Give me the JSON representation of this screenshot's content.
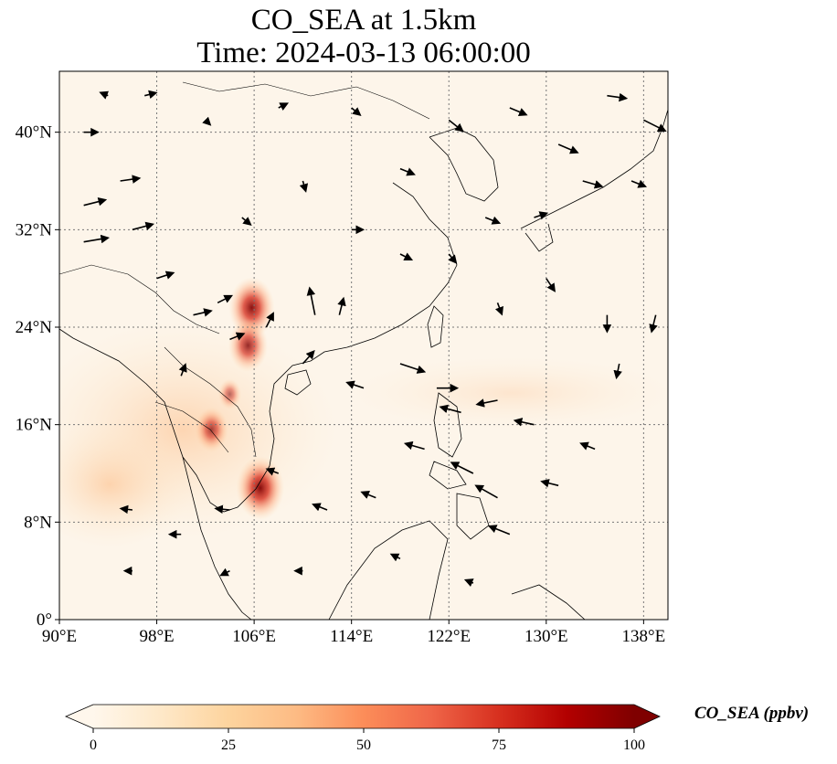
{
  "title": {
    "line1": "CO_SEA at 1.5km",
    "line2": "Time: 2024-03-13 06:00:00"
  },
  "map": {
    "lon_range": [
      90,
      140
    ],
    "lat_range": [
      0,
      45
    ],
    "lon_ticks": [
      {
        "value": 90,
        "label": "90°E"
      },
      {
        "value": 98,
        "label": "98°E"
      },
      {
        "value": 106,
        "label": "106°E"
      },
      {
        "value": 114,
        "label": "114°E"
      },
      {
        "value": 122,
        "label": "122°E"
      },
      {
        "value": 130,
        "label": "130°E"
      },
      {
        "value": 138,
        "label": "138°E"
      }
    ],
    "lat_ticks": [
      {
        "value": 0,
        "label": "0°"
      },
      {
        "value": 8,
        "label": "8°N"
      },
      {
        "value": 16,
        "label": "16°N"
      },
      {
        "value": 24,
        "label": "24°N"
      },
      {
        "value": 32,
        "label": "32°N"
      },
      {
        "value": 40,
        "label": "40°N"
      }
    ],
    "gridlines": true,
    "background_color": "#fdf5ea",
    "coastline_color": "#000000",
    "vector_color": "#000000",
    "hotspots": [
      {
        "lon": 105.8,
        "lat": 25.6,
        "value": 85
      },
      {
        "lon": 105.5,
        "lat": 22.5,
        "value": 70
      },
      {
        "lon": 106.5,
        "lat": 10.8,
        "value": 90
      },
      {
        "lon": 102.5,
        "lat": 15.6,
        "value": 55
      },
      {
        "lon": 104.0,
        "lat": 18.5,
        "value": 30
      }
    ],
    "wind_vectors": [
      {
        "lon": 92,
        "lat": 40,
        "u": 1.0,
        "v": 0.0
      },
      {
        "lon": 92,
        "lat": 34,
        "u": 1.6,
        "v": 0.4
      },
      {
        "lon": 92,
        "lat": 31,
        "u": 1.8,
        "v": 0.3
      },
      {
        "lon": 95,
        "lat": 36,
        "u": 1.4,
        "v": 0.2
      },
      {
        "lon": 96,
        "lat": 32,
        "u": 1.5,
        "v": 0.4
      },
      {
        "lon": 98,
        "lat": 28,
        "u": 1.2,
        "v": 0.4
      },
      {
        "lon": 101,
        "lat": 25,
        "u": 1.3,
        "v": 0.3
      },
      {
        "lon": 100,
        "lat": 20,
        "u": 0.3,
        "v": 0.8
      },
      {
        "lon": 103,
        "lat": 26,
        "u": 1.0,
        "v": 0.5
      },
      {
        "lon": 104,
        "lat": 23,
        "u": 1.0,
        "v": 0.4
      },
      {
        "lon": 107,
        "lat": 24,
        "u": 0.5,
        "v": 1.0
      },
      {
        "lon": 111,
        "lat": 25,
        "u": -0.4,
        "v": 2.0
      },
      {
        "lon": 113,
        "lat": 25,
        "u": 0.3,
        "v": 1.2
      },
      {
        "lon": 110,
        "lat": 21,
        "u": 0.8,
        "v": 0.9
      },
      {
        "lon": 115,
        "lat": 19,
        "u": -1.2,
        "v": 0.4
      },
      {
        "lon": 118,
        "lat": 21,
        "u": 1.8,
        "v": -0.6
      },
      {
        "lon": 121,
        "lat": 19,
        "u": 1.5,
        "v": 0.0
      },
      {
        "lon": 123,
        "lat": 17,
        "u": -1.5,
        "v": 0.4
      },
      {
        "lon": 126,
        "lat": 18,
        "u": -1.5,
        "v": -0.3
      },
      {
        "lon": 129,
        "lat": 16,
        "u": -1.4,
        "v": 0.3
      },
      {
        "lon": 120,
        "lat": 14,
        "u": -1.4,
        "v": 0.4
      },
      {
        "lon": 124,
        "lat": 12,
        "u": -1.6,
        "v": 0.8
      },
      {
        "lon": 126,
        "lat": 10,
        "u": -1.6,
        "v": 0.9
      },
      {
        "lon": 127,
        "lat": 7,
        "u": -1.5,
        "v": 0.6
      },
      {
        "lon": 116,
        "lat": 10,
        "u": -1.0,
        "v": 0.4
      },
      {
        "lon": 112,
        "lat": 9,
        "u": -1.0,
        "v": 0.4
      },
      {
        "lon": 108,
        "lat": 12,
        "u": -0.8,
        "v": 0.3
      },
      {
        "lon": 104,
        "lat": 9,
        "u": -1.0,
        "v": 0.1
      },
      {
        "lon": 100,
        "lat": 7,
        "u": -0.8,
        "v": 0.0
      },
      {
        "lon": 96,
        "lat": 9,
        "u": -0.8,
        "v": 0.1
      },
      {
        "lon": 96,
        "lat": 4,
        "u": -0.5,
        "v": 0.0
      },
      {
        "lon": 104,
        "lat": 4,
        "u": -0.6,
        "v": -0.3
      },
      {
        "lon": 110,
        "lat": 4,
        "u": -0.5,
        "v": 0.0
      },
      {
        "lon": 118,
        "lat": 5,
        "u": -0.6,
        "v": 0.3
      },
      {
        "lon": 124,
        "lat": 3,
        "u": -0.5,
        "v": 0.2
      },
      {
        "lon": 131,
        "lat": 11,
        "u": -1.2,
        "v": 0.3
      },
      {
        "lon": 134,
        "lat": 14,
        "u": -1.0,
        "v": 0.4
      },
      {
        "lon": 136,
        "lat": 21,
        "u": -0.2,
        "v": -1.0
      },
      {
        "lon": 135,
        "lat": 25,
        "u": 0.0,
        "v": -1.2
      },
      {
        "lon": 139,
        "lat": 25,
        "u": -0.3,
        "v": -1.2
      },
      {
        "lon": 130,
        "lat": 28,
        "u": 0.6,
        "v": -0.9
      },
      {
        "lon": 126,
        "lat": 26,
        "u": 0.3,
        "v": -0.8
      },
      {
        "lon": 122,
        "lat": 30,
        "u": 0.5,
        "v": -0.6
      },
      {
        "lon": 125,
        "lat": 33,
        "u": 1.0,
        "v": -0.4
      },
      {
        "lon": 129,
        "lat": 33,
        "u": 0.9,
        "v": 0.3
      },
      {
        "lon": 133,
        "lat": 36,
        "u": 1.4,
        "v": -0.4
      },
      {
        "lon": 137,
        "lat": 36,
        "u": 1.0,
        "v": -0.4
      },
      {
        "lon": 138,
        "lat": 41,
        "u": 1.6,
        "v": -0.8
      },
      {
        "lon": 135,
        "lat": 43,
        "u": 1.4,
        "v": -0.2
      },
      {
        "lon": 131,
        "lat": 39,
        "u": 1.4,
        "v": -0.6
      },
      {
        "lon": 127,
        "lat": 42,
        "u": 1.2,
        "v": -0.5
      },
      {
        "lon": 122,
        "lat": 41,
        "u": 1.0,
        "v": -0.8
      },
      {
        "lon": 118,
        "lat": 37,
        "u": 1.0,
        "v": -0.4
      },
      {
        "lon": 114,
        "lat": 42,
        "u": 0.6,
        "v": -0.5
      },
      {
        "lon": 108,
        "lat": 42,
        "u": 0.6,
        "v": 0.3
      },
      {
        "lon": 102,
        "lat": 41,
        "u": 0.3,
        "v": -0.3
      },
      {
        "lon": 97,
        "lat": 43,
        "u": 0.8,
        "v": 0.2
      },
      {
        "lon": 94,
        "lat": 43,
        "u": -0.5,
        "v": 0.2
      },
      {
        "lon": 110,
        "lat": 36,
        "u": 0.2,
        "v": -0.7
      },
      {
        "lon": 105,
        "lat": 33,
        "u": 0.6,
        "v": -0.5
      },
      {
        "lon": 114,
        "lat": 32,
        "u": 0.8,
        "v": 0.0
      },
      {
        "lon": 118,
        "lat": 30,
        "u": 0.8,
        "v": -0.4
      }
    ]
  },
  "colorbar": {
    "label": "CO_SEA (ppbv)",
    "min": 0,
    "max": 100,
    "extend": "both",
    "ticks": [
      {
        "value": 0,
        "label": "0"
      },
      {
        "value": 25,
        "label": "25"
      },
      {
        "value": 50,
        "label": "50"
      },
      {
        "value": 75,
        "label": "75"
      },
      {
        "value": 100,
        "label": "100"
      }
    ],
    "colormap": [
      "#fff7ec",
      "#fee8c8",
      "#fdd49e",
      "#fdbb84",
      "#fc8d59",
      "#ef6548",
      "#d7301f",
      "#b30000",
      "#7f0000"
    ]
  }
}
